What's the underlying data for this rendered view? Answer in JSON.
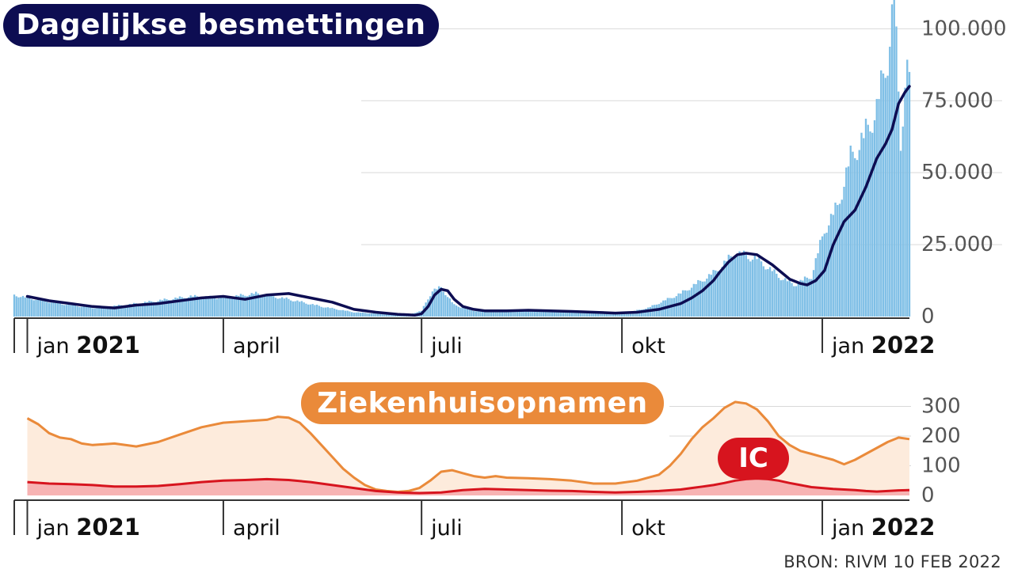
{
  "source": "BRON: RIVM 10 FEB 2022",
  "colors": {
    "navy": "#0d0d52",
    "bar_blue": "#7fbfe6",
    "orange": "#ea8a3a",
    "orange_fill": "#fdebdc",
    "red": "#d7141e",
    "red_fill": "#f7b3b3",
    "grid": "#d9d9d9",
    "axis_text": "#555555"
  },
  "x_axis": {
    "month_labels": [
      {
        "label": "jan",
        "year": "2021",
        "day": 0
      },
      {
        "label": "april",
        "year": "",
        "day": 90
      },
      {
        "label": "juli",
        "year": "",
        "day": 181
      },
      {
        "label": "okt",
        "year": "",
        "day": 273
      },
      {
        "label": "jan",
        "year": "2022",
        "day": 365
      }
    ],
    "start_day": -6,
    "end_day": 405
  },
  "chart_data": [
    {
      "type": "bar",
      "title": "Dagelijkse besmettingen",
      "ylim": [
        0,
        110000
      ],
      "y_ticks": [
        {
          "value": 0,
          "label": "0"
        },
        {
          "value": 25000,
          "label": "25.000"
        },
        {
          "value": 50000,
          "label": "50.000"
        },
        {
          "value": 75000,
          "label": "75.000"
        },
        {
          "value": 100000,
          "label": "100.000"
        }
      ],
      "series": [
        {
          "kind": "bars",
          "x": [
            -6,
            0,
            15,
            30,
            45,
            60,
            75,
            90,
            105,
            120,
            135,
            150,
            165,
            175,
            181,
            186,
            190,
            196,
            205,
            220,
            240,
            260,
            273,
            285,
            300,
            315,
            325,
            335,
            345,
            352,
            360,
            366,
            372,
            378,
            384,
            390,
            395,
            398,
            401,
            403,
            404
          ],
          "values": [
            7500,
            6500,
            4500,
            3000,
            4000,
            5500,
            7000,
            6500,
            8000,
            6000,
            3500,
            1500,
            800,
            700,
            2000,
            9000,
            10000,
            4000,
            2000,
            1800,
            2000,
            1500,
            1000,
            3000,
            8000,
            15000,
            22000,
            20000,
            14000,
            11000,
            14000,
            30000,
            38000,
            55000,
            62000,
            72000,
            90000,
            110000,
            60000,
            82000,
            85000
          ]
        },
        {
          "kind": "line",
          "x": [
            0,
            10,
            20,
            30,
            40,
            50,
            60,
            70,
            80,
            90,
            100,
            110,
            120,
            130,
            140,
            150,
            160,
            170,
            175,
            178,
            181,
            184,
            187,
            190,
            193,
            196,
            200,
            205,
            210,
            220,
            230,
            240,
            250,
            260,
            270,
            280,
            290,
            300,
            305,
            310,
            315,
            318,
            322,
            326,
            330,
            335,
            338,
            342,
            346,
            350,
            355,
            358,
            362,
            366,
            370,
            375,
            380,
            385,
            390,
            394,
            397,
            400,
            403,
            405
          ],
          "values": [
            7000,
            5500,
            4500,
            3500,
            3000,
            4000,
            4500,
            5500,
            6500,
            7000,
            6000,
            7500,
            8000,
            6500,
            5000,
            2500,
            1500,
            800,
            600,
            500,
            1000,
            3500,
            7500,
            9500,
            9000,
            6000,
            3500,
            2500,
            2000,
            2000,
            2200,
            2000,
            1800,
            1500,
            1200,
            1500,
            2500,
            4500,
            6500,
            9000,
            12500,
            15500,
            19000,
            21500,
            22000,
            21500,
            20000,
            18000,
            15500,
            13000,
            11500,
            11000,
            12500,
            16000,
            25000,
            33000,
            37000,
            45000,
            55000,
            60000,
            65000,
            74000,
            78000,
            80000
          ]
        }
      ]
    },
    {
      "type": "area",
      "title": "Ziekenhuisopnamen",
      "ylim": [
        0,
        320
      ],
      "y_ticks": [
        {
          "value": 0,
          "label": "0"
        },
        {
          "value": 100,
          "label": "100"
        },
        {
          "value": 200,
          "label": "200"
        },
        {
          "value": 300,
          "label": "300"
        }
      ],
      "series": [
        {
          "name": "Ziekenhuisopnamen",
          "x": [
            0,
            5,
            10,
            15,
            20,
            25,
            30,
            40,
            50,
            60,
            70,
            80,
            90,
            100,
            110,
            115,
            120,
            125,
            130,
            135,
            140,
            145,
            150,
            155,
            160,
            165,
            170,
            175,
            180,
            185,
            190,
            195,
            200,
            205,
            210,
            215,
            220,
            230,
            240,
            250,
            260,
            270,
            280,
            290,
            295,
            300,
            305,
            310,
            315,
            320,
            325,
            330,
            335,
            340,
            345,
            350,
            355,
            360,
            365,
            370,
            375,
            380,
            385,
            390,
            395,
            400,
            405
          ],
          "values": [
            260,
            240,
            210,
            195,
            190,
            175,
            170,
            175,
            165,
            180,
            205,
            230,
            245,
            250,
            255,
            265,
            262,
            245,
            210,
            170,
            130,
            90,
            60,
            35,
            20,
            15,
            12,
            15,
            25,
            50,
            80,
            85,
            75,
            65,
            60,
            65,
            60,
            58,
            55,
            50,
            40,
            40,
            50,
            70,
            100,
            140,
            190,
            230,
            260,
            295,
            315,
            310,
            290,
            250,
            200,
            170,
            150,
            140,
            130,
            120,
            105,
            120,
            140,
            160,
            180,
            195,
            190
          ]
        },
        {
          "name": "IC",
          "x": [
            0,
            10,
            20,
            30,
            40,
            50,
            60,
            70,
            80,
            90,
            100,
            110,
            120,
            130,
            140,
            150,
            160,
            170,
            180,
            190,
            200,
            210,
            220,
            230,
            240,
            250,
            260,
            270,
            280,
            290,
            300,
            305,
            310,
            315,
            320,
            325,
            330,
            335,
            340,
            345,
            350,
            355,
            360,
            365,
            370,
            375,
            380,
            385,
            390,
            395,
            400,
            405
          ],
          "values": [
            45,
            40,
            38,
            35,
            30,
            30,
            32,
            38,
            45,
            50,
            52,
            55,
            52,
            45,
            35,
            25,
            15,
            10,
            8,
            10,
            18,
            22,
            20,
            18,
            16,
            15,
            12,
            10,
            12,
            15,
            20,
            25,
            30,
            35,
            42,
            50,
            55,
            57,
            55,
            50,
            42,
            35,
            28,
            25,
            22,
            20,
            18,
            15,
            13,
            15,
            17,
            18
          ]
        }
      ]
    }
  ]
}
